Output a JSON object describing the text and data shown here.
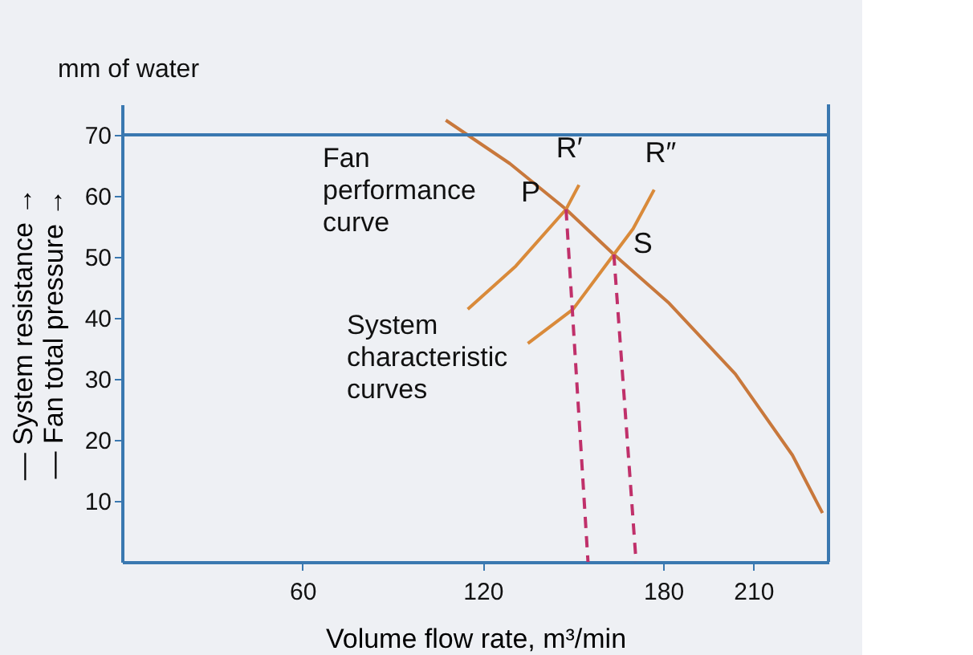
{
  "chart_data": {
    "type": "line",
    "xlabel": "Volume flow rate, m³/min",
    "ylabel": "— System resistance →\n— Fan total pressure →",
    "xlim": [
      0,
      235
    ],
    "xticks": [
      60,
      120,
      180,
      210
    ],
    "ylim": [
      0,
      75
    ],
    "yticks": [
      10,
      20,
      30,
      40,
      50,
      60,
      70
    ],
    "grid": false,
    "marker": "none",
    "series": [
      {
        "color": "#c8783c",
        "x": [
          107.7,
          129,
          147.7,
          163.6,
          182,
          204,
          223,
          233
        ],
        "values": [
          72.4,
          65.3,
          57.8,
          50.4,
          42.4,
          30.8,
          17.5,
          8
        ]
      },
      {
        "color": "#d98a3a",
        "x": [
          115,
          131,
          147.7,
          152
        ],
        "values": [
          41.4,
          48.5,
          57.8,
          61.8
        ]
      },
      {
        "color": "#d98a3a",
        "x": [
          135,
          150,
          163.6,
          170,
          177
        ],
        "values": [
          35.8,
          41.4,
          50.4,
          54.6,
          61
        ]
      },
      {
        "color": "#c0306a",
        "line_style": "dashed",
        "x": [
          147.7,
          155
        ],
        "values": [
          57.8,
          0
        ]
      },
      {
        "color": "#c0306a",
        "line_style": "dashed",
        "x": [
          163.6,
          171
        ],
        "values": [
          50.4,
          0
        ]
      }
    ],
    "ref_lines": [
      {
        "axis": "y",
        "value": 70,
        "color": "#3a78b0"
      }
    ],
    "annotations": [
      {
        "text": "P",
        "x": 147.7,
        "y": 57.8
      },
      {
        "text": "S",
        "x": 163.6,
        "y": 50.4
      },
      {
        "text": "R′",
        "x": 152,
        "y": 61.8
      },
      {
        "text": "R″",
        "x": 177,
        "y": 61
      },
      "mm of water",
      "Fan\nperformance\ncurve",
      "System\ncharacteristic\ncurves"
    ]
  }
}
